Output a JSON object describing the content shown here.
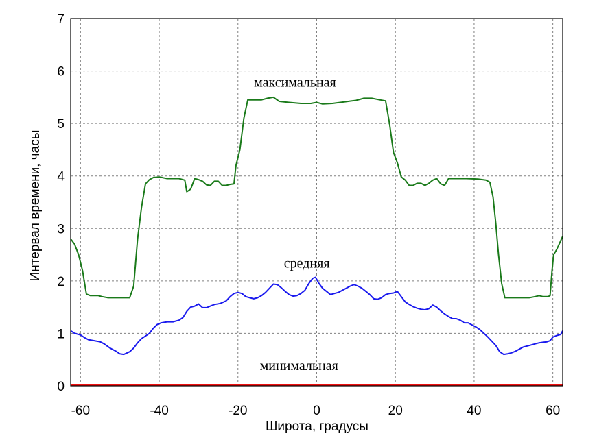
{
  "chart_data": {
    "type": "line",
    "title": "",
    "xlabel": "Широта, градусы",
    "ylabel": "Интервал времени, часы",
    "xlim": [
      -62.5,
      62.5
    ],
    "ylim": [
      0,
      7
    ],
    "x_ticks": [
      -60,
      -40,
      -20,
      0,
      20,
      40,
      60
    ],
    "y_ticks": [
      0,
      1,
      2,
      3,
      4,
      5,
      6,
      7
    ],
    "grid": true,
    "annotations": [
      {
        "text": "максимальная",
        "x": -5.5,
        "y": 5.7
      },
      {
        "text": "средняя",
        "x": -2.5,
        "y": 2.25
      },
      {
        "text": "минимальная",
        "x": -4.5,
        "y": 0.3
      }
    ],
    "series": [
      {
        "label": "максимальная",
        "color": "#1a7a1a",
        "points": [
          [
            -62.5,
            2.8
          ],
          [
            -61.5,
            2.7
          ],
          [
            -60.5,
            2.5
          ],
          [
            -59.5,
            2.2
          ],
          [
            -58.5,
            1.75
          ],
          [
            -57.5,
            1.72
          ],
          [
            -56.5,
            1.72
          ],
          [
            -55.5,
            1.72
          ],
          [
            -54.5,
            1.7
          ],
          [
            -53,
            1.68
          ],
          [
            -50,
            1.68
          ],
          [
            -47.5,
            1.68
          ],
          [
            -46.5,
            1.9
          ],
          [
            -45.5,
            2.8
          ],
          [
            -44.5,
            3.4
          ],
          [
            -43.5,
            3.85
          ],
          [
            -42.5,
            3.93
          ],
          [
            -41.5,
            3.97
          ],
          [
            -40,
            3.98
          ],
          [
            -38,
            3.95
          ],
          [
            -35,
            3.95
          ],
          [
            -33.5,
            3.92
          ],
          [
            -33,
            3.7
          ],
          [
            -32,
            3.75
          ],
          [
            -31,
            3.95
          ],
          [
            -30,
            3.93
          ],
          [
            -29,
            3.9
          ],
          [
            -28,
            3.83
          ],
          [
            -27,
            3.82
          ],
          [
            -26,
            3.9
          ],
          [
            -25,
            3.9
          ],
          [
            -24,
            3.82
          ],
          [
            -23,
            3.82
          ],
          [
            -22,
            3.84
          ],
          [
            -21,
            3.85
          ],
          [
            -20.5,
            4.2
          ],
          [
            -19.5,
            4.5
          ],
          [
            -18.5,
            5.1
          ],
          [
            -17.5,
            5.45
          ],
          [
            -16,
            5.45
          ],
          [
            -14,
            5.45
          ],
          [
            -12.5,
            5.48
          ],
          [
            -11,
            5.5
          ],
          [
            -9.5,
            5.42
          ],
          [
            -7,
            5.4
          ],
          [
            -4,
            5.38
          ],
          [
            -1.5,
            5.38
          ],
          [
            0,
            5.4
          ],
          [
            1.5,
            5.37
          ],
          [
            4,
            5.38
          ],
          [
            6,
            5.4
          ],
          [
            8,
            5.42
          ],
          [
            10,
            5.44
          ],
          [
            12,
            5.48
          ],
          [
            14,
            5.48
          ],
          [
            16,
            5.45
          ],
          [
            17.5,
            5.43
          ],
          [
            18.5,
            5.0
          ],
          [
            19.5,
            4.45
          ],
          [
            20.5,
            4.25
          ],
          [
            21.5,
            3.98
          ],
          [
            22.5,
            3.92
          ],
          [
            23.5,
            3.82
          ],
          [
            24.5,
            3.82
          ],
          [
            25.5,
            3.86
          ],
          [
            26.5,
            3.86
          ],
          [
            27.5,
            3.82
          ],
          [
            28.5,
            3.86
          ],
          [
            29.5,
            3.92
          ],
          [
            30.5,
            3.95
          ],
          [
            31.5,
            3.85
          ],
          [
            32.5,
            3.82
          ],
          [
            33.5,
            3.95
          ],
          [
            35,
            3.95
          ],
          [
            38,
            3.95
          ],
          [
            41,
            3.94
          ],
          [
            43,
            3.92
          ],
          [
            44,
            3.88
          ],
          [
            44.8,
            3.6
          ],
          [
            45.5,
            3.1
          ],
          [
            46.2,
            2.5
          ],
          [
            47,
            1.95
          ],
          [
            47.8,
            1.68
          ],
          [
            50,
            1.68
          ],
          [
            52,
            1.68
          ],
          [
            54,
            1.68
          ],
          [
            55.5,
            1.7
          ],
          [
            56.5,
            1.72
          ],
          [
            57.5,
            1.7
          ],
          [
            58.8,
            1.7
          ],
          [
            59.3,
            1.72
          ],
          [
            59.8,
            2.2
          ],
          [
            60.2,
            2.5
          ],
          [
            61,
            2.6
          ],
          [
            62.5,
            2.85
          ]
        ]
      },
      {
        "label": "средняя",
        "color": "#1a1aee",
        "points": [
          [
            -62.5,
            1.05
          ],
          [
            -61.5,
            1.0
          ],
          [
            -60,
            0.97
          ],
          [
            -59,
            0.92
          ],
          [
            -58,
            0.88
          ],
          [
            -56.5,
            0.86
          ],
          [
            -55,
            0.84
          ],
          [
            -54,
            0.8
          ],
          [
            -52.5,
            0.72
          ],
          [
            -51,
            0.66
          ],
          [
            -50,
            0.61
          ],
          [
            -49,
            0.6
          ],
          [
            -47.5,
            0.65
          ],
          [
            -46.5,
            0.72
          ],
          [
            -45.5,
            0.82
          ],
          [
            -44.5,
            0.9
          ],
          [
            -43.5,
            0.95
          ],
          [
            -42.5,
            1.0
          ],
          [
            -41.5,
            1.1
          ],
          [
            -40.5,
            1.17
          ],
          [
            -39.5,
            1.2
          ],
          [
            -38,
            1.22
          ],
          [
            -36.5,
            1.22
          ],
          [
            -35,
            1.25
          ],
          [
            -34,
            1.3
          ],
          [
            -33,
            1.42
          ],
          [
            -32,
            1.5
          ],
          [
            -31,
            1.52
          ],
          [
            -30,
            1.56
          ],
          [
            -29,
            1.49
          ],
          [
            -28,
            1.49
          ],
          [
            -27,
            1.52
          ],
          [
            -26,
            1.55
          ],
          [
            -24.5,
            1.57
          ],
          [
            -23,
            1.62
          ],
          [
            -22,
            1.7
          ],
          [
            -21,
            1.76
          ],
          [
            -20,
            1.78
          ],
          [
            -19,
            1.76
          ],
          [
            -18,
            1.7
          ],
          [
            -17,
            1.68
          ],
          [
            -16,
            1.66
          ],
          [
            -15,
            1.68
          ],
          [
            -14,
            1.72
          ],
          [
            -13,
            1.78
          ],
          [
            -12,
            1.86
          ],
          [
            -11,
            1.94
          ],
          [
            -10,
            1.93
          ],
          [
            -9,
            1.87
          ],
          [
            -8,
            1.8
          ],
          [
            -7,
            1.74
          ],
          [
            -6,
            1.71
          ],
          [
            -5,
            1.72
          ],
          [
            -4,
            1.76
          ],
          [
            -3,
            1.82
          ],
          [
            -2,
            1.95
          ],
          [
            -1,
            2.05
          ],
          [
            -0.3,
            2.07
          ],
          [
            0.5,
            1.96
          ],
          [
            1.5,
            1.86
          ],
          [
            2.5,
            1.8
          ],
          [
            3.5,
            1.74
          ],
          [
            4.5,
            1.76
          ],
          [
            5.5,
            1.78
          ],
          [
            6.5,
            1.82
          ],
          [
            7.5,
            1.86
          ],
          [
            8.5,
            1.9
          ],
          [
            9.5,
            1.93
          ],
          [
            10.5,
            1.9
          ],
          [
            11.5,
            1.86
          ],
          [
            12.5,
            1.8
          ],
          [
            13.5,
            1.74
          ],
          [
            14.5,
            1.66
          ],
          [
            15.5,
            1.65
          ],
          [
            16.5,
            1.68
          ],
          [
            17.5,
            1.74
          ],
          [
            18.5,
            1.76
          ],
          [
            19.5,
            1.77
          ],
          [
            20.5,
            1.8
          ],
          [
            21.5,
            1.7
          ],
          [
            22.5,
            1.6
          ],
          [
            23.5,
            1.55
          ],
          [
            24.5,
            1.51
          ],
          [
            25.5,
            1.48
          ],
          [
            26.5,
            1.46
          ],
          [
            27.5,
            1.45
          ],
          [
            28.5,
            1.47
          ],
          [
            29.5,
            1.54
          ],
          [
            30.5,
            1.5
          ],
          [
            31.5,
            1.43
          ],
          [
            32.5,
            1.37
          ],
          [
            33.5,
            1.32
          ],
          [
            34.5,
            1.28
          ],
          [
            35.5,
            1.28
          ],
          [
            36.5,
            1.25
          ],
          [
            37.5,
            1.2
          ],
          [
            38.5,
            1.2
          ],
          [
            39.5,
            1.16
          ],
          [
            40.5,
            1.12
          ],
          [
            41.5,
            1.07
          ],
          [
            42.5,
            1.0
          ],
          [
            43.5,
            0.93
          ],
          [
            44.5,
            0.85
          ],
          [
            45.5,
            0.77
          ],
          [
            46.5,
            0.65
          ],
          [
            47.5,
            0.6
          ],
          [
            48.5,
            0.61
          ],
          [
            49.5,
            0.63
          ],
          [
            50.5,
            0.66
          ],
          [
            51.5,
            0.7
          ],
          [
            52.5,
            0.74
          ],
          [
            53.5,
            0.76
          ],
          [
            54.5,
            0.78
          ],
          [
            55.5,
            0.8
          ],
          [
            56.5,
            0.82
          ],
          [
            57.5,
            0.83
          ],
          [
            58.5,
            0.84
          ],
          [
            59.3,
            0.86
          ],
          [
            60,
            0.93
          ],
          [
            61,
            0.96
          ],
          [
            62,
            0.98
          ],
          [
            62.5,
            1.05
          ]
        ]
      },
      {
        "label": "минимальная",
        "color": "#ee1111",
        "points": [
          [
            -62.5,
            0.02
          ],
          [
            62.5,
            0.02
          ]
        ]
      }
    ]
  }
}
